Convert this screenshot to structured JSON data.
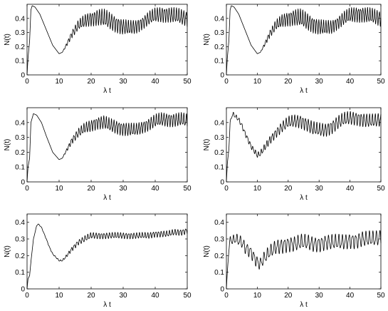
{
  "chart_data": [
    {
      "type": "line",
      "xlabel": "λ t",
      "ylabel": "N(t)",
      "xlim": [
        0,
        50
      ],
      "ylim": [
        0,
        0.5
      ],
      "xticks": [
        "0",
        "10",
        "20",
        "30",
        "40",
        "50"
      ],
      "yticks": [
        "0",
        "0.1",
        "0.2",
        "0.3",
        "0.4"
      ],
      "series": [
        {
          "knots": [
            [
              0,
              0
            ],
            [
              0.3,
              0.12
            ],
            [
              0.8,
              0.24
            ],
            [
              1.2,
              0.46
            ],
            [
              1.6,
              0.49
            ],
            [
              2.5,
              0.48
            ],
            [
              4,
              0.43
            ],
            [
              6,
              0.32
            ],
            [
              8,
              0.21
            ],
            [
              10,
              0.15
            ],
            [
              11,
              0.16
            ],
            [
              12,
              0.2
            ],
            [
              14,
              0.29
            ],
            [
              16,
              0.35
            ],
            [
              18,
              0.38
            ],
            [
              20,
              0.4
            ],
            [
              22,
              0.41
            ],
            [
              24,
              0.4
            ],
            [
              26,
              0.38
            ],
            [
              28,
              0.36
            ],
            [
              30,
              0.34
            ],
            [
              32,
              0.33
            ],
            [
              34,
              0.34
            ],
            [
              36,
              0.37
            ],
            [
              38,
              0.4
            ],
            [
              40,
              0.42
            ],
            [
              42,
              0.43
            ],
            [
              44,
              0.43
            ],
            [
              46,
              0.42
            ],
            [
              48,
              0.41
            ],
            [
              50,
              0.4
            ]
          ],
          "osc": [
            [
              0,
              0
            ],
            [
              11,
              0
            ],
            [
              14,
              0.03
            ],
            [
              18,
              0.05
            ],
            [
              24,
              0.07
            ],
            [
              30,
              0.06
            ],
            [
              36,
              0.05
            ],
            [
              42,
              0.06
            ],
            [
              50,
              0.06
            ]
          ],
          "osc_period": 0.75
        }
      ]
    },
    {
      "type": "line",
      "xlabel": "λ t",
      "ylabel": "N(t)",
      "xlim": [
        0,
        50
      ],
      "ylim": [
        0,
        0.5
      ],
      "xticks": [
        "0",
        "10",
        "20",
        "30",
        "40",
        "50"
      ],
      "yticks": [
        "0",
        "0.1",
        "0.2",
        "0.3",
        "0.4"
      ],
      "series": [
        {
          "knots": [
            [
              0,
              0
            ],
            [
              0.3,
              0.12
            ],
            [
              0.8,
              0.24
            ],
            [
              1.2,
              0.46
            ],
            [
              1.6,
              0.49
            ],
            [
              2.5,
              0.48
            ],
            [
              4,
              0.43
            ],
            [
              6,
              0.32
            ],
            [
              8,
              0.21
            ],
            [
              10,
              0.15
            ],
            [
              11,
              0.16
            ],
            [
              12,
              0.2
            ],
            [
              14,
              0.29
            ],
            [
              16,
              0.35
            ],
            [
              18,
              0.38
            ],
            [
              20,
              0.4
            ],
            [
              22,
              0.41
            ],
            [
              24,
              0.4
            ],
            [
              26,
              0.38
            ],
            [
              28,
              0.36
            ],
            [
              30,
              0.34
            ],
            [
              32,
              0.33
            ],
            [
              34,
              0.34
            ],
            [
              36,
              0.37
            ],
            [
              38,
              0.4
            ],
            [
              40,
              0.42
            ],
            [
              42,
              0.43
            ],
            [
              44,
              0.43
            ],
            [
              46,
              0.42
            ],
            [
              48,
              0.41
            ],
            [
              50,
              0.4
            ]
          ],
          "osc": [
            [
              0,
              0
            ],
            [
              11,
              0
            ],
            [
              14,
              0.03
            ],
            [
              18,
              0.05
            ],
            [
              24,
              0.07
            ],
            [
              30,
              0.06
            ],
            [
              36,
              0.05
            ],
            [
              42,
              0.06
            ],
            [
              50,
              0.06
            ]
          ],
          "osc_period": 0.75
        }
      ]
    },
    {
      "type": "line",
      "xlabel": "λ t",
      "ylabel": "N(t)",
      "xlim": [
        0,
        50
      ],
      "ylim": [
        0,
        0.5
      ],
      "xticks": [
        "0",
        "10",
        "20",
        "30",
        "40",
        "50"
      ],
      "yticks": [
        "0",
        "0.1",
        "0.2",
        "0.3",
        "0.4"
      ],
      "series": [
        {
          "knots": [
            [
              0,
              0
            ],
            [
              0.3,
              0.1
            ],
            [
              0.8,
              0.16
            ],
            [
              1.2,
              0.4
            ],
            [
              2,
              0.46
            ],
            [
              3,
              0.45
            ],
            [
              4.5,
              0.4
            ],
            [
              6,
              0.31
            ],
            [
              8,
              0.2
            ],
            [
              10,
              0.15
            ],
            [
              11,
              0.16
            ],
            [
              12,
              0.2
            ],
            [
              14,
              0.28
            ],
            [
              16,
              0.33
            ],
            [
              18,
              0.36
            ],
            [
              20,
              0.38
            ],
            [
              22,
              0.4
            ],
            [
              24,
              0.4
            ],
            [
              26,
              0.38
            ],
            [
              28,
              0.37
            ],
            [
              30,
              0.36
            ],
            [
              32,
              0.35
            ],
            [
              34,
              0.35
            ],
            [
              36,
              0.37
            ],
            [
              38,
              0.39
            ],
            [
              40,
              0.41
            ],
            [
              42,
              0.42
            ],
            [
              44,
              0.42
            ],
            [
              46,
              0.42
            ],
            [
              48,
              0.42
            ],
            [
              50,
              0.41
            ]
          ],
          "osc": [
            [
              0,
              0
            ],
            [
              11,
              0
            ],
            [
              14,
              0.025
            ],
            [
              18,
              0.04
            ],
            [
              24,
              0.05
            ],
            [
              30,
              0.05
            ],
            [
              36,
              0.045
            ],
            [
              42,
              0.05
            ],
            [
              50,
              0.05
            ]
          ],
          "osc_period": 0.78
        }
      ]
    },
    {
      "type": "line",
      "xlabel": "λ t",
      "ylabel": "N(t)",
      "xlim": [
        0,
        50
      ],
      "ylim": [
        0,
        0.5
      ],
      "xticks": [
        "0",
        "10",
        "20",
        "30",
        "40",
        "50"
      ],
      "yticks": [
        "0",
        "0.1",
        "0.2",
        "0.3",
        "0.4"
      ],
      "series": [
        {
          "knots": [
            [
              0,
              0
            ],
            [
              0.3,
              0.12
            ],
            [
              0.8,
              0.22
            ],
            [
              1.2,
              0.4
            ],
            [
              2,
              0.46
            ],
            [
              3,
              0.44
            ],
            [
              4,
              0.42
            ],
            [
              5,
              0.38
            ],
            [
              6,
              0.33
            ],
            [
              8,
              0.24
            ],
            [
              10,
              0.18
            ],
            [
              11,
              0.19
            ],
            [
              12,
              0.22
            ],
            [
              14,
              0.28
            ],
            [
              16,
              0.33
            ],
            [
              18,
              0.37
            ],
            [
              20,
              0.4
            ],
            [
              22,
              0.41
            ],
            [
              24,
              0.41
            ],
            [
              26,
              0.39
            ],
            [
              28,
              0.36
            ],
            [
              30,
              0.35
            ],
            [
              32,
              0.35
            ],
            [
              34,
              0.37
            ],
            [
              36,
              0.4
            ],
            [
              38,
              0.42
            ],
            [
              40,
              0.43
            ],
            [
              42,
              0.43
            ],
            [
              44,
              0.42
            ],
            [
              46,
              0.41
            ],
            [
              48,
              0.41
            ],
            [
              50,
              0.42
            ]
          ],
          "osc": [
            [
              0,
              0
            ],
            [
              2,
              0.015
            ],
            [
              10,
              0.02
            ],
            [
              14,
              0.03
            ],
            [
              18,
              0.04
            ],
            [
              24,
              0.05
            ],
            [
              30,
              0.05
            ],
            [
              36,
              0.05
            ],
            [
              42,
              0.05
            ],
            [
              50,
              0.05
            ]
          ],
          "osc_period": 0.9
        }
      ]
    },
    {
      "type": "line",
      "xlabel": "λ t",
      "ylabel": "N(t)",
      "xlim": [
        0,
        50
      ],
      "ylim": [
        0,
        0.45
      ],
      "xticks": [
        "0",
        "10",
        "20",
        "30",
        "40",
        "50"
      ],
      "yticks": [
        "0",
        "0.1",
        "0.2",
        "0.3",
        "0.4"
      ],
      "series": [
        {
          "knots": [
            [
              0,
              0
            ],
            [
              0.3,
              0.06
            ],
            [
              0.8,
              0.08
            ],
            [
              1.3,
              0.18
            ],
            [
              2,
              0.3
            ],
            [
              3,
              0.38
            ],
            [
              3.5,
              0.39
            ],
            [
              4.5,
              0.37
            ],
            [
              6,
              0.3
            ],
            [
              7,
              0.25
            ],
            [
              8,
              0.21
            ],
            [
              9,
              0.19
            ],
            [
              10,
              0.17
            ],
            [
              11,
              0.17
            ],
            [
              12,
              0.19
            ],
            [
              14,
              0.24
            ],
            [
              16,
              0.28
            ],
            [
              18,
              0.3
            ],
            [
              20,
              0.32
            ],
            [
              22,
              0.32
            ],
            [
              24,
              0.32
            ],
            [
              26,
              0.32
            ],
            [
              28,
              0.32
            ],
            [
              30,
              0.32
            ],
            [
              32,
              0.32
            ],
            [
              34,
              0.32
            ],
            [
              36,
              0.32
            ],
            [
              38,
              0.32
            ],
            [
              40,
              0.33
            ],
            [
              42,
              0.33
            ],
            [
              44,
              0.33
            ],
            [
              46,
              0.34
            ],
            [
              48,
              0.34
            ],
            [
              50,
              0.35
            ]
          ],
          "osc": [
            [
              0,
              0
            ],
            [
              11,
              0.005
            ],
            [
              14,
              0.015
            ],
            [
              18,
              0.02
            ],
            [
              24,
              0.02
            ],
            [
              30,
              0.02
            ],
            [
              36,
              0.02
            ],
            [
              42,
              0.02
            ],
            [
              50,
              0.02
            ]
          ],
          "osc_period": 0.85
        }
      ]
    },
    {
      "type": "line",
      "xlabel": "λ t",
      "ylabel": "N(t)",
      "xlim": [
        0,
        50
      ],
      "ylim": [
        0,
        0.45
      ],
      "xticks": [
        "0",
        "10",
        "20",
        "30",
        "40",
        "50"
      ],
      "yticks": [
        "0",
        "0.1",
        "0.2",
        "0.3",
        "0.4"
      ],
      "series": [
        {
          "knots": [
            [
              0,
              0
            ],
            [
              0.3,
              0.1
            ],
            [
              0.8,
              0.24
            ],
            [
              1.3,
              0.3
            ],
            [
              2,
              0.29
            ],
            [
              3,
              0.3
            ],
            [
              4,
              0.29
            ],
            [
              5,
              0.28
            ],
            [
              6,
              0.25
            ],
            [
              8,
              0.22
            ],
            [
              10,
              0.16
            ],
            [
              11,
              0.15
            ],
            [
              12,
              0.18
            ],
            [
              14,
              0.22
            ],
            [
              16,
              0.25
            ],
            [
              18,
              0.26
            ],
            [
              20,
              0.27
            ],
            [
              22,
              0.27
            ],
            [
              24,
              0.28
            ],
            [
              26,
              0.28
            ],
            [
              28,
              0.27
            ],
            [
              30,
              0.27
            ],
            [
              32,
              0.28
            ],
            [
              34,
              0.28
            ],
            [
              36,
              0.28
            ],
            [
              38,
              0.28
            ],
            [
              40,
              0.29
            ],
            [
              42,
              0.29
            ],
            [
              44,
              0.3
            ],
            [
              46,
              0.3
            ],
            [
              48,
              0.3
            ],
            [
              50,
              0.31
            ]
          ],
          "osc": [
            [
              0,
              0
            ],
            [
              1.5,
              0.03
            ],
            [
              6,
              0.04
            ],
            [
              12,
              0.04
            ],
            [
              18,
              0.05
            ],
            [
              24,
              0.05
            ],
            [
              30,
              0.05
            ],
            [
              36,
              0.05
            ],
            [
              42,
              0.05
            ],
            [
              50,
              0.05
            ]
          ],
          "osc_period": 1.1
        }
      ]
    }
  ]
}
